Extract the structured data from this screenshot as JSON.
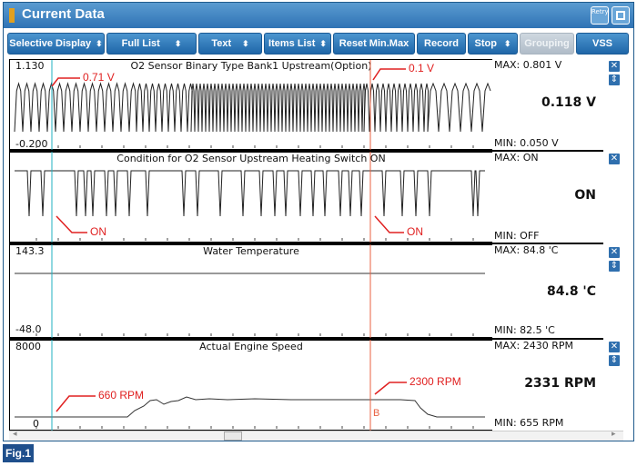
{
  "window": {
    "title": "Current Data",
    "retry_label": "Retry"
  },
  "toolbar": {
    "buttons": [
      {
        "label": "Selective Display",
        "dropdown": true,
        "enabled": true
      },
      {
        "label": "Full List",
        "dropdown": true,
        "enabled": true
      },
      {
        "label": "Text",
        "dropdown": true,
        "enabled": true
      },
      {
        "label": "Items List",
        "dropdown": true,
        "enabled": true
      },
      {
        "label": "Reset Min.Max",
        "dropdown": false,
        "enabled": true
      },
      {
        "label": "Record",
        "dropdown": false,
        "enabled": true
      },
      {
        "label": "Stop",
        "dropdown": true,
        "enabled": true
      },
      {
        "label": "Grouping",
        "dropdown": false,
        "enabled": false
      },
      {
        "label": "VSS",
        "dropdown": false,
        "enabled": true
      }
    ]
  },
  "panels": [
    {
      "title": "O2 Sensor Binary Type Bank1 Upstream(Option)",
      "scale_max": "1.130",
      "scale_min": "-0.200",
      "max_text": "MAX: 0.801 V",
      "min_text": "MIN: 0.050 V",
      "current": "0.118 V"
    },
    {
      "title": "Condition for O2 Sensor Upstream Heating Switch ON",
      "scale_max": "",
      "scale_min": "",
      "max_text": "MAX: ON",
      "min_text": "MIN: OFF",
      "current": "ON"
    },
    {
      "title": "Water Temperature",
      "scale_max": "143.3",
      "scale_min": "-48.0",
      "max_text": "MAX:  84.8 'C",
      "min_text": "MIN:  82.5 'C",
      "current": "84.8 'C"
    },
    {
      "title": "Actual Engine Speed",
      "scale_max": "8000",
      "scale_min": "0",
      "max_text": "MAX:  2430 RPM",
      "min_text": "MIN:   655 RPM",
      "current": "2331 RPM"
    }
  ],
  "annotations": {
    "o2_left": "0.71 V",
    "o2_right": "0.1 V",
    "sw_left": "ON",
    "sw_right": "ON",
    "rpm_left": "660 RPM",
    "rpm_right": "2300 RPM",
    "cursor_b": "B"
  },
  "figure_label": "Fig.1",
  "colors": {
    "accent": "#2f73b5",
    "cursor_a": "#20b0c0",
    "cursor_b": "#e86040",
    "annotation": "#e02020"
  }
}
